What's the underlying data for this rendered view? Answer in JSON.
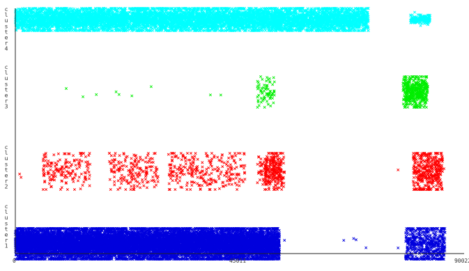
{
  "chart_data": {
    "type": "scatter",
    "title": "",
    "xlabel": "",
    "ylabel": "",
    "xlim": [
      0,
      90022
    ],
    "x_tick_labels": [
      "0",
      "45011",
      "90022"
    ],
    "x_ticks": [
      0,
      45011,
      90022
    ],
    "grid": false,
    "legend": "none",
    "marker": "x",
    "categories": [
      "cluster4",
      "cluster3",
      "cluster2",
      "cluster1"
    ],
    "series": [
      {
        "name": "cluster4",
        "color": "#00ffff",
        "dense_ranges": [
          {
            "start": 0,
            "end": 71500,
            "density": 150,
            "spread": 0.55
          },
          {
            "start": 80000,
            "end": 84000,
            "density": 60,
            "spread": 0.2
          }
        ],
        "sparse_points": [
          16500
        ]
      },
      {
        "name": "cluster3",
        "color": "#00ee00",
        "dense_ranges": [
          {
            "start": 49000,
            "end": 52500,
            "density": 30,
            "spread": 0.5
          },
          {
            "start": 78500,
            "end": 83500,
            "density": 120,
            "spread": 0.55
          }
        ],
        "sparse_points": [
          10300,
          13700,
          16400,
          20400,
          23600,
          27500,
          39500,
          41600,
          21000
        ]
      },
      {
        "name": "cluster2",
        "color": "#ff0000",
        "dense_ranges": [
          {
            "start": 800,
            "end": 1400,
            "density": 4,
            "spread": 0.25
          },
          {
            "start": 5600,
            "end": 15200,
            "density": 25,
            "spread": 0.55
          },
          {
            "start": 19000,
            "end": 29000,
            "density": 25,
            "spread": 0.55
          },
          {
            "start": 31000,
            "end": 46500,
            "density": 25,
            "spread": 0.55
          },
          {
            "start": 49000,
            "end": 54500,
            "density": 30,
            "spread": 0.45
          },
          {
            "start": 50500,
            "end": 54000,
            "density": 70,
            "spread": 0.6
          },
          {
            "start": 80500,
            "end": 86500,
            "density": 90,
            "spread": 0.6
          }
        ],
        "sparse_points": [
          77500,
          86800,
          84500
        ]
      },
      {
        "name": "cluster1",
        "color": "#0000dd",
        "dense_ranges": [
          {
            "start": 0,
            "end": 53500,
            "density": 320,
            "spread": 0.55
          },
          {
            "start": 79000,
            "end": 87000,
            "density": 100,
            "spread": 0.7
          }
        ],
        "sparse_points": [
          54500,
          66500,
          68500,
          69000,
          71000,
          77500
        ]
      }
    ]
  }
}
